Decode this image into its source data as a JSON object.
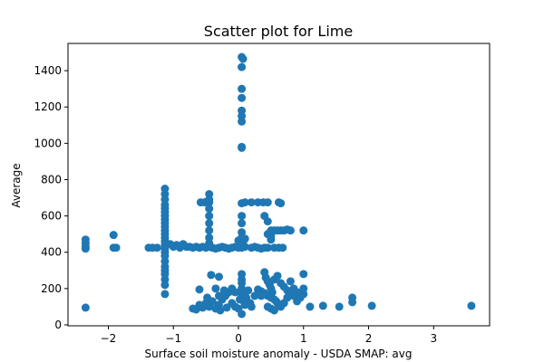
{
  "chart_data": {
    "type": "scatter",
    "title": "Scatter plot for Lime",
    "xlabel": "Surface soil moisture anomaly  - USDA SMAP: avg",
    "ylabel": "Average",
    "xlim": [
      -2.62,
      3.86
    ],
    "ylim": [
      -5,
      1550
    ],
    "xticks": [
      -2,
      -1,
      0,
      1,
      2,
      3
    ],
    "yticks": [
      0,
      200,
      400,
      600,
      800,
      1000,
      1200,
      1400
    ],
    "xtick_labels": [
      "−2",
      "−1",
      "0",
      "1",
      "2",
      "3"
    ],
    "ytick_labels": [
      "0",
      "200",
      "400",
      "600",
      "800",
      "1000",
      "1200",
      "1400"
    ],
    "grid": false,
    "marker_color": "#1f77b4",
    "series": [
      {
        "points": [
          [
            -2.35,
            470
          ],
          [
            -2.35,
            450
          ],
          [
            -2.35,
            430
          ],
          [
            -2.35,
            420
          ],
          [
            -2.35,
            95
          ],
          [
            -1.92,
            495
          ],
          [
            -1.92,
            425
          ],
          [
            -1.88,
            425
          ],
          [
            -1.38,
            425
          ],
          [
            -1.32,
            425
          ],
          [
            -1.25,
            425
          ],
          [
            -1.13,
            750
          ],
          [
            -1.13,
            720
          ],
          [
            -1.13,
            690
          ],
          [
            -1.13,
            660
          ],
          [
            -1.13,
            640
          ],
          [
            -1.13,
            620
          ],
          [
            -1.13,
            600
          ],
          [
            -1.13,
            580
          ],
          [
            -1.13,
            560
          ],
          [
            -1.13,
            540
          ],
          [
            -1.13,
            520
          ],
          [
            -1.13,
            500
          ],
          [
            -1.13,
            480
          ],
          [
            -1.13,
            460
          ],
          [
            -1.13,
            440
          ],
          [
            -1.13,
            420
          ],
          [
            -1.13,
            400
          ],
          [
            -1.13,
            380
          ],
          [
            -1.13,
            350
          ],
          [
            -1.13,
            320
          ],
          [
            -1.13,
            300
          ],
          [
            -1.13,
            280
          ],
          [
            -1.13,
            250
          ],
          [
            -1.13,
            220
          ],
          [
            -1.13,
            170
          ],
          [
            -1.05,
            445
          ],
          [
            -1.0,
            430
          ],
          [
            -0.95,
            440
          ],
          [
            -0.9,
            425
          ],
          [
            -0.85,
            445
          ],
          [
            -0.8,
            430
          ],
          [
            -0.75,
            430
          ],
          [
            -0.7,
            425
          ],
          [
            -0.65,
            430
          ],
          [
            -0.6,
            425
          ],
          [
            -0.55,
            430
          ],
          [
            -0.5,
            425
          ],
          [
            -0.45,
            430
          ],
          [
            -0.4,
            425
          ],
          [
            -0.35,
            420
          ],
          [
            -0.3,
            425
          ],
          [
            -0.25,
            430
          ],
          [
            -0.2,
            425
          ],
          [
            -0.15,
            420
          ],
          [
            -0.1,
            425
          ],
          [
            -0.05,
            430
          ],
          [
            0.0,
            425
          ],
          [
            0.05,
            425
          ],
          [
            0.1,
            430
          ],
          [
            0.2,
            425
          ],
          [
            0.25,
            430
          ],
          [
            0.3,
            425
          ],
          [
            0.35,
            420
          ],
          [
            0.4,
            425
          ],
          [
            0.45,
            425
          ],
          [
            0.55,
            425
          ],
          [
            0.62,
            425
          ],
          [
            0.68,
            425
          ],
          [
            -0.58,
            675
          ],
          [
            -0.52,
            675
          ],
          [
            -0.48,
            680
          ],
          [
            -0.45,
            675
          ],
          [
            -0.45,
            720
          ],
          [
            -0.45,
            690
          ],
          [
            -0.45,
            640
          ],
          [
            -0.45,
            600
          ],
          [
            -0.45,
            560
          ],
          [
            -0.45,
            520
          ],
          [
            -0.45,
            480
          ],
          [
            -0.45,
            450
          ],
          [
            -0.42,
            275
          ],
          [
            -0.3,
            265
          ],
          [
            -0.6,
            195
          ],
          [
            -0.48,
            150
          ],
          [
            -0.35,
            200
          ],
          [
            0.0,
            465
          ],
          [
            0.03,
            470
          ],
          [
            0.05,
            470
          ],
          [
            0.08,
            465
          ],
          [
            0.1,
            475
          ],
          [
            0.05,
            1475
          ],
          [
            0.07,
            1465
          ],
          [
            0.05,
            1420
          ],
          [
            0.05,
            1300
          ],
          [
            0.05,
            1250
          ],
          [
            0.05,
            1180
          ],
          [
            0.05,
            1150
          ],
          [
            0.05,
            1120
          ],
          [
            0.05,
            980
          ],
          [
            0.05,
            975
          ],
          [
            0.05,
            670
          ],
          [
            0.1,
            675
          ],
          [
            0.2,
            675
          ],
          [
            0.3,
            675
          ],
          [
            0.38,
            675
          ],
          [
            0.45,
            675
          ],
          [
            0.62,
            675
          ],
          [
            0.65,
            670
          ],
          [
            0.05,
            600
          ],
          [
            0.05,
            560
          ],
          [
            0.05,
            510
          ],
          [
            0.05,
            480
          ],
          [
            0.05,
            280
          ],
          [
            0.05,
            250
          ],
          [
            0.05,
            230
          ],
          [
            0.05,
            200
          ],
          [
            0.4,
            600
          ],
          [
            0.45,
            500
          ],
          [
            0.45,
            570
          ],
          [
            0.5,
            520
          ],
          [
            0.55,
            520
          ],
          [
            0.6,
            520
          ],
          [
            0.65,
            520
          ],
          [
            0.7,
            520
          ],
          [
            0.75,
            525
          ],
          [
            0.8,
            520
          ],
          [
            1.0,
            520
          ],
          [
            0.5,
            490
          ],
          [
            0.5,
            470
          ],
          [
            0.4,
            290
          ],
          [
            0.42,
            260
          ],
          [
            0.45,
            240
          ],
          [
            0.48,
            220
          ],
          [
            0.5,
            200
          ],
          [
            0.52,
            180
          ],
          [
            0.45,
            160
          ],
          [
            0.5,
            150
          ],
          [
            0.55,
            140
          ],
          [
            0.58,
            130
          ],
          [
            0.6,
            120
          ],
          [
            0.62,
            110
          ],
          [
            0.45,
            100
          ],
          [
            0.5,
            90
          ],
          [
            0.55,
            80
          ],
          [
            0.65,
            100
          ],
          [
            0.7,
            120
          ],
          [
            0.75,
            150
          ],
          [
            0.8,
            180
          ],
          [
            0.85,
            200
          ],
          [
            0.9,
            180
          ],
          [
            0.95,
            150
          ],
          [
            0.55,
            250
          ],
          [
            0.6,
            270
          ],
          [
            0.65,
            230
          ],
          [
            0.7,
            210
          ],
          [
            0.75,
            190
          ],
          [
            0.8,
            240
          ],
          [
            0.85,
            160
          ],
          [
            0.9,
            130
          ],
          [
            1.0,
            280
          ],
          [
            1.0,
            200
          ],
          [
            1.0,
            170
          ],
          [
            0.3,
            195
          ],
          [
            0.35,
            185
          ],
          [
            0.4,
            175
          ],
          [
            0.35,
            160
          ],
          [
            -0.5,
            120
          ],
          [
            -0.45,
            100
          ],
          [
            -0.4,
            130
          ],
          [
            -0.35,
            90
          ],
          [
            -0.3,
            110
          ],
          [
            -0.25,
            140
          ],
          [
            -0.2,
            160
          ],
          [
            -0.15,
            180
          ],
          [
            -0.1,
            120
          ],
          [
            -0.05,
            100
          ],
          [
            0.0,
            90
          ],
          [
            0.02,
            140
          ],
          [
            0.05,
            170
          ],
          [
            0.08,
            130
          ],
          [
            0.1,
            110
          ],
          [
            0.12,
            150
          ],
          [
            0.15,
            190
          ],
          [
            0.18,
            120
          ],
          [
            0.2,
            100
          ],
          [
            -0.55,
            95
          ],
          [
            -0.6,
            110
          ],
          [
            -0.65,
            85
          ],
          [
            -0.7,
            90
          ],
          [
            -0.28,
            80
          ],
          [
            -0.18,
            95
          ],
          [
            0.25,
            160
          ],
          [
            -0.1,
            200
          ],
          [
            -0.05,
            180
          ],
          [
            0.05,
            60
          ],
          [
            0.05,
            195
          ],
          [
            0.08,
            185
          ],
          [
            -0.3,
            160
          ],
          [
            -0.22,
            190
          ],
          [
            1.1,
            100
          ],
          [
            1.3,
            105
          ],
          [
            1.55,
            100
          ],
          [
            1.75,
            150
          ],
          [
            1.75,
            125
          ],
          [
            2.05,
            105
          ],
          [
            3.58,
            105
          ]
        ]
      }
    ]
  }
}
